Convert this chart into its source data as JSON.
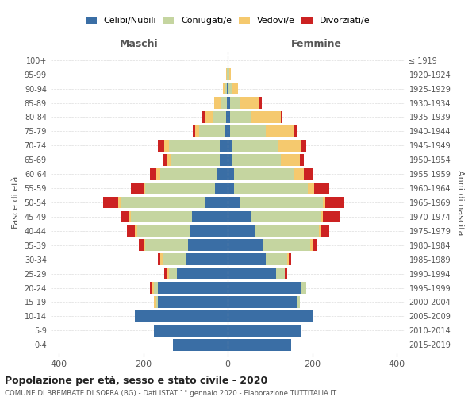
{
  "age_groups": [
    "0-4",
    "5-9",
    "10-14",
    "15-19",
    "20-24",
    "25-29",
    "30-34",
    "35-39",
    "40-44",
    "45-49",
    "50-54",
    "55-59",
    "60-64",
    "65-69",
    "70-74",
    "75-79",
    "80-84",
    "85-89",
    "90-94",
    "95-99",
    "100+"
  ],
  "birth_years": [
    "2015-2019",
    "2010-2014",
    "2005-2009",
    "2000-2004",
    "1995-1999",
    "1990-1994",
    "1985-1989",
    "1980-1984",
    "1975-1979",
    "1970-1974",
    "1965-1969",
    "1960-1964",
    "1955-1959",
    "1950-1954",
    "1945-1949",
    "1940-1944",
    "1935-1939",
    "1930-1934",
    "1925-1929",
    "1920-1924",
    "≤ 1919"
  ],
  "colors": {
    "celibi": "#3a6ea5",
    "coniugati": "#c5d5a0",
    "vedovi": "#f5c96e",
    "divorziati": "#cc2222"
  },
  "males": {
    "celibi": [
      130,
      175,
      220,
      165,
      165,
      120,
      100,
      95,
      90,
      85,
      55,
      30,
      25,
      20,
      20,
      8,
      5,
      3,
      2,
      1,
      0
    ],
    "coniugati": [
      0,
      0,
      0,
      5,
      10,
      20,
      55,
      100,
      125,
      145,
      200,
      165,
      135,
      115,
      120,
      60,
      30,
      15,
      5,
      2,
      0
    ],
    "vedovi": [
      0,
      0,
      0,
      5,
      5,
      5,
      5,
      5,
      5,
      5,
      5,
      5,
      10,
      10,
      10,
      10,
      20,
      15,
      5,
      1,
      0
    ],
    "divorziati": [
      0,
      0,
      0,
      0,
      5,
      5,
      5,
      10,
      20,
      20,
      35,
      30,
      15,
      10,
      15,
      5,
      5,
      0,
      0,
      0,
      0
    ]
  },
  "females": {
    "celibi": [
      150,
      175,
      200,
      165,
      175,
      115,
      90,
      85,
      65,
      55,
      30,
      15,
      15,
      10,
      10,
      5,
      5,
      5,
      2,
      1,
      0
    ],
    "coniugati": [
      0,
      0,
      0,
      5,
      10,
      20,
      50,
      110,
      150,
      165,
      195,
      175,
      140,
      115,
      110,
      85,
      50,
      25,
      8,
      2,
      0
    ],
    "vedovi": [
      0,
      0,
      0,
      0,
      0,
      0,
      5,
      5,
      5,
      5,
      5,
      15,
      25,
      45,
      55,
      65,
      70,
      45,
      15,
      5,
      1
    ],
    "divorziati": [
      0,
      0,
      0,
      0,
      0,
      5,
      5,
      10,
      20,
      40,
      45,
      35,
      20,
      10,
      10,
      10,
      5,
      5,
      0,
      0,
      0
    ]
  },
  "xlim": 420,
  "title": "Popolazione per età, sesso e stato civile - 2020",
  "subtitle": "COMUNE DI BREMBATE DI SOPRA (BG) - Dati ISTAT 1° gennaio 2020 - Elaborazione TUTTITALIA.IT",
  "ylabel_left": "Fasce di età",
  "ylabel_right": "Anni di nascita",
  "xlabel_maschi": "Maschi",
  "xlabel_femmine": "Femmine"
}
